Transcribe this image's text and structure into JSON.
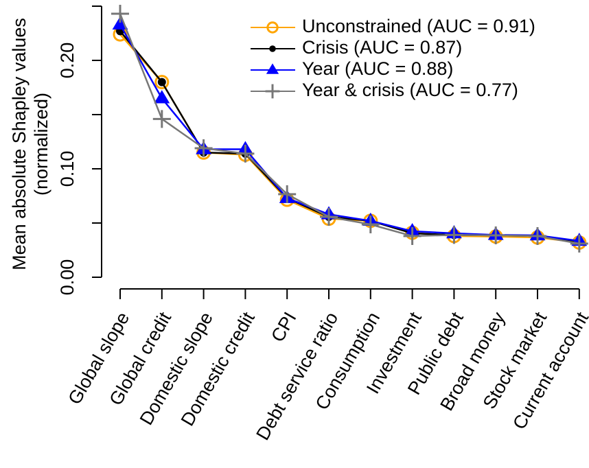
{
  "chart_data": {
    "type": "line",
    "y_label_lines": [
      "Mean absolute Shapley values",
      "(normalized)"
    ],
    "categories": [
      "Global slope",
      "Global credit",
      "Domestic slope",
      "Domestic credit",
      "CPI",
      "Debt service ratio",
      "Consumption",
      "Investment",
      "Public debt",
      "Broad money",
      "Stock market",
      "Current account"
    ],
    "series": [
      {
        "name": "Unconstrained (AUC = 0.91)",
        "color": "#FFA500",
        "marker": "open-circle",
        "values": [
          0.224,
          0.18,
          0.115,
          0.113,
          0.0715,
          0.054,
          0.052,
          0.041,
          0.038,
          0.0375,
          0.0367,
          0.032
        ]
      },
      {
        "name": "Crisis (AUC = 0.87)",
        "color": "#000000",
        "marker": "dot",
        "values": [
          0.227,
          0.18,
          0.115,
          0.114,
          0.073,
          0.0557,
          0.052,
          0.0405,
          0.039,
          0.0386,
          0.038,
          0.033
        ]
      },
      {
        "name": "Year (AUC = 0.88)",
        "color": "#0000FF",
        "marker": "triangle",
        "values": [
          0.233,
          0.165,
          0.118,
          0.118,
          0.073,
          0.058,
          0.052,
          0.0424,
          0.0405,
          0.039,
          0.0386,
          0.0335
        ]
      },
      {
        "name": "Year & crisis (AUC = 0.77)",
        "color": "#777777",
        "marker": "plus",
        "values": [
          0.243,
          0.146,
          0.119,
          0.114,
          0.0766,
          0.0557,
          0.0487,
          0.038,
          0.039,
          0.0386,
          0.038,
          0.031
        ]
      }
    ],
    "ylim": [
      0,
      0.25
    ],
    "yticks": [
      {
        "value": 0,
        "label": "0.00"
      },
      {
        "value": 0.05,
        "label": null
      },
      {
        "value": 0.1,
        "label": "0.10"
      },
      {
        "value": 0.15,
        "label": null
      },
      {
        "value": 0.2,
        "label": "0.20"
      },
      {
        "value": 0.25,
        "label": null
      }
    ],
    "legend_position": "top-right",
    "grid": false
  }
}
